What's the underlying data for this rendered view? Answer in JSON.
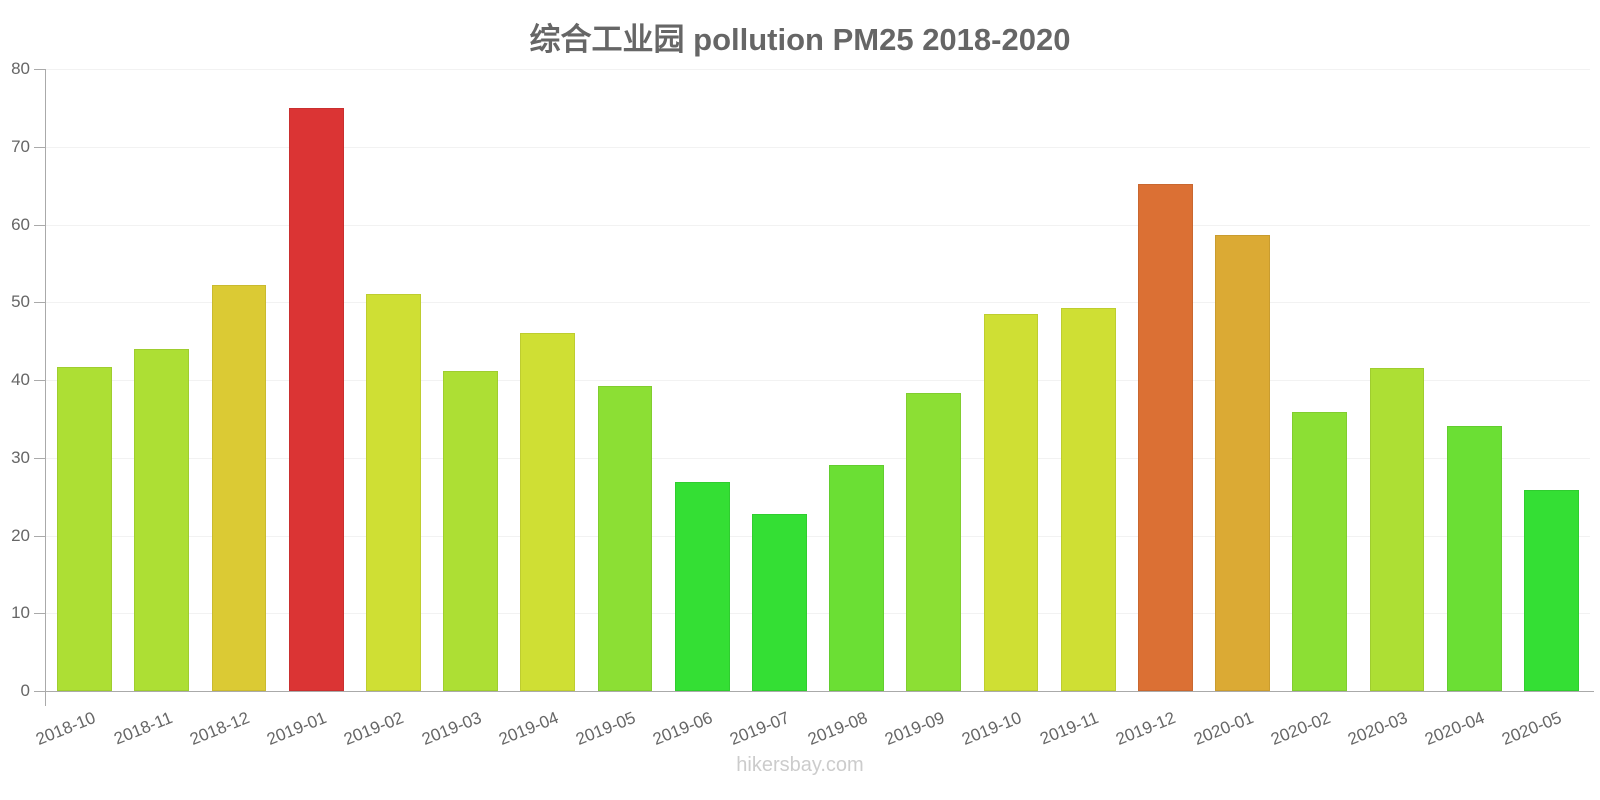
{
  "chart_data": {
    "type": "bar",
    "title": "综合工业园 pollution PM25 2018-2020",
    "xlabel": "",
    "ylabel": "",
    "ylim": [
      0,
      80
    ],
    "yticks": [
      0,
      10,
      20,
      30,
      40,
      50,
      60,
      70,
      80
    ],
    "grid": true,
    "legend": null,
    "categories": [
      "2018-10",
      "2018-11",
      "2018-12",
      "2019-01",
      "2019-02",
      "2019-03",
      "2019-04",
      "2019-05",
      "2019-06",
      "2019-07",
      "2019-08",
      "2019-09",
      "2019-10",
      "2019-11",
      "2019-12",
      "2020-01",
      "2020-02",
      "2020-03",
      "2020-04",
      "2020-05"
    ],
    "values": [
      41.7,
      44.0,
      52.2,
      75.0,
      51.1,
      41.2,
      46.0,
      39.2,
      26.9,
      22.8,
      29.1,
      38.3,
      48.5,
      49.3,
      65.2,
      58.6,
      35.9,
      41.5,
      34.1,
      25.9
    ],
    "colors": [
      "#addf34",
      "#addf34",
      "#dbca34",
      "#db3434",
      "#cfdf34",
      "#addf34",
      "#cfdf34",
      "#8cdf34",
      "#34df34",
      "#34df34",
      "#6bdf34",
      "#8cdf34",
      "#cfdf34",
      "#cfdf34",
      "#db7034",
      "#dbaa34",
      "#8cdf34",
      "#addf34",
      "#6bdf34",
      "#34df34"
    ]
  },
  "watermark": "hikersbay.com"
}
